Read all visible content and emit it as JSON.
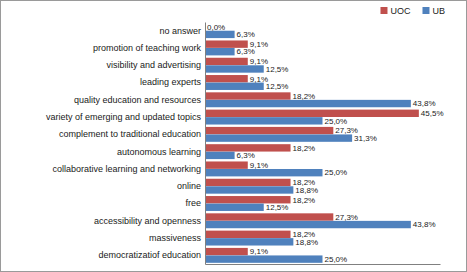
{
  "chart_data": {
    "type": "bar",
    "orientation": "horizontal",
    "categories": [
      "no answer",
      "promotion of teaching work",
      "visibility and advertising",
      "leading experts",
      "quality education and resources",
      "variety of emerging and updated topics",
      "complement to traditional education",
      "autonomous learning",
      "collaborative learning and networking",
      "online",
      "free",
      "accessibility and openness",
      "massiveness",
      "democratizatiof education"
    ],
    "series": [
      {
        "name": "UOC",
        "color": "#c0504d",
        "values": [
          0.0,
          9.1,
          9.1,
          9.1,
          18.2,
          45.5,
          27.3,
          18.2,
          9.1,
          18.2,
          18.2,
          27.3,
          18.2,
          9.1
        ],
        "value_labels": [
          "0,0%",
          "9,1%",
          "9,1%",
          "9,1%",
          "18,2%",
          "45,5%",
          "27,3%",
          "18,2%",
          "9,1%",
          "18,2%",
          "18,2%",
          "27,3%",
          "18,2%",
          "9,1%"
        ]
      },
      {
        "name": "UB",
        "color": "#4f81bd",
        "values": [
          6.3,
          6.3,
          12.5,
          12.5,
          43.8,
          25.0,
          31.3,
          6.3,
          25.0,
          18.8,
          12.5,
          43.8,
          18.8,
          25.0
        ],
        "value_labels": [
          "6,3%",
          "6,3%",
          "12,5%",
          "12,5%",
          "43,8%",
          "25,0%",
          "31,3%",
          "6,3%",
          "25,0%",
          "18,8%",
          "12,5%",
          "43,8%",
          "18,8%",
          "25,0%"
        ]
      }
    ],
    "xlim": [
      0,
      50
    ],
    "data_labels": true,
    "tick_labels": "y",
    "legend": "top-right",
    "grid": false
  }
}
